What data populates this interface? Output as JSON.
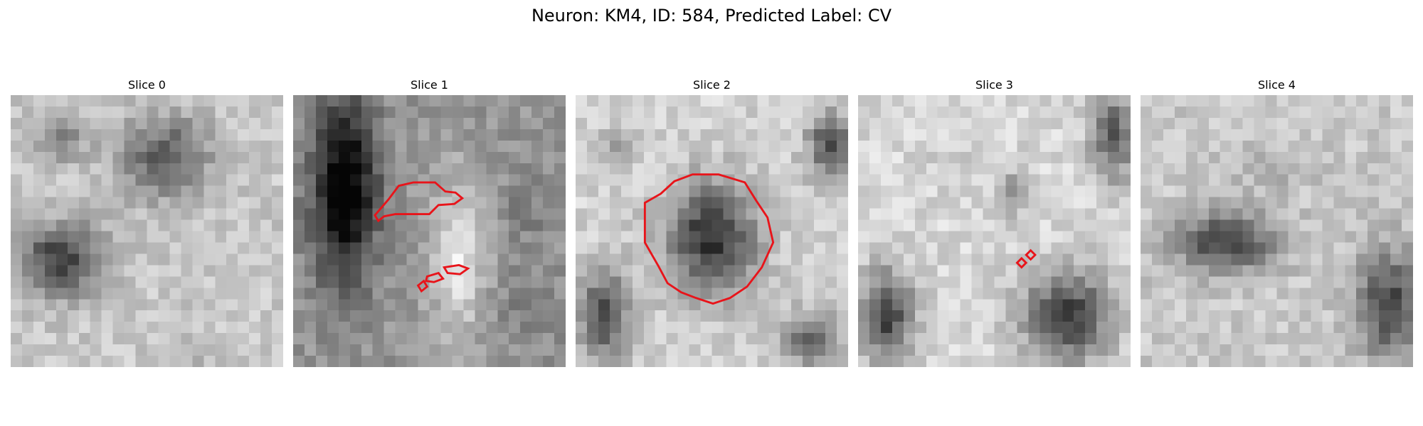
{
  "figure": {
    "title": "Neuron: KM4, ID: 584, Predicted Label: CV"
  },
  "contour_color": "#e8141a",
  "slices": [
    {
      "title": "Slice 0"
    },
    {
      "title": "Slice 1"
    },
    {
      "title": "Slice 2"
    },
    {
      "title": "Slice 3"
    },
    {
      "title": "Slice 4"
    }
  ]
}
